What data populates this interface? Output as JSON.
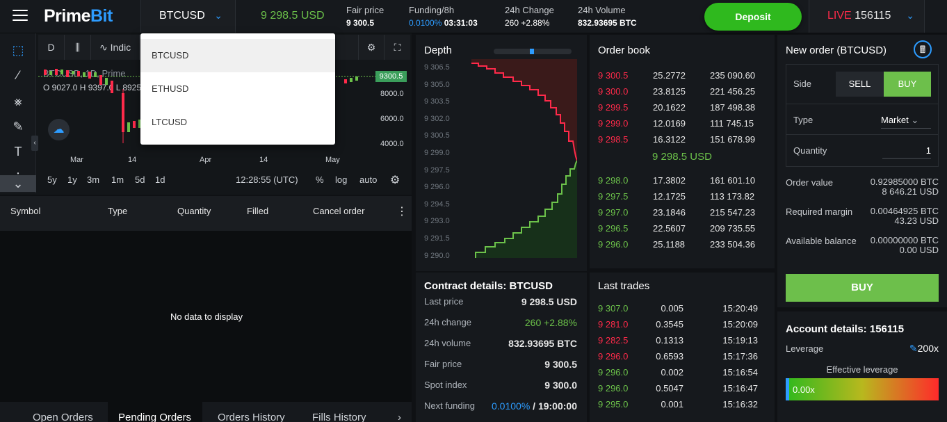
{
  "header": {
    "brand_prime": "Prime",
    "brand_bit": "Bit",
    "symbol": "BTCUSD",
    "price": "9 298.5 USD",
    "fair_price_label": "Fair price",
    "fair_price": "9 300.5",
    "funding_label": "Funding/8h",
    "funding_rate": "0.0100%",
    "funding_time": "03:31:03",
    "change_label": "24h Change",
    "change_value": "260 +2.88%",
    "volume_label": "24h Volume",
    "volume_value": "832.93695 BTC",
    "deposit_label": "Deposit",
    "account_live": "LIVE",
    "account_id": "156115"
  },
  "dropdown": {
    "items": [
      "BTCUSD",
      "ETHUSD",
      "LTCUSD"
    ]
  },
  "chart": {
    "interval_btn": "D",
    "indicators_label": "Indic",
    "legend": "BTCUSD, 1D, Prime",
    "ohlc_o": "O 9027.0",
    "ohlc_h": "H 9397.0",
    "ohlc_l": "L 8925",
    "current_price_tag": "9300.5",
    "y_ticks": [
      "8000.0",
      "6000.0",
      "4000.0"
    ],
    "x_ticks": [
      "Mar",
      "14",
      "Apr",
      "14",
      "May"
    ],
    "timeframes": [
      "5y",
      "1y",
      "3m",
      "1m",
      "5d",
      "1d"
    ],
    "clock": "12:28:55 (UTC)",
    "pct": "%",
    "log": "log",
    "auto": "auto"
  },
  "orders": {
    "columns": [
      "Symbol",
      "Type",
      "Quantity",
      "Filled",
      "Cancel order"
    ],
    "empty": "No data to display",
    "tabs": [
      "Open Orders",
      "Pending Orders",
      "Orders History",
      "Fills History"
    ]
  },
  "depth": {
    "title": "Depth",
    "y_labels": [
      "9 306.5",
      "9 305.0",
      "9 303.5",
      "9 302.0",
      "9 300.5",
      "9 299.0",
      "9 297.5",
      "9 296.0",
      "9 294.5",
      "9 293.0",
      "9 291.5",
      "9 290.0"
    ]
  },
  "orderbook": {
    "title": "Order book",
    "asks": [
      {
        "price": "9 300.5",
        "qty": "25.2772",
        "total": "235 090.60"
      },
      {
        "price": "9 300.0",
        "qty": "23.8125",
        "total": "221 456.25"
      },
      {
        "price": "9 299.5",
        "qty": "20.1622",
        "total": "187 498.38"
      },
      {
        "price": "9 299.0",
        "qty": "12.0169",
        "total": "111 745.15"
      },
      {
        "price": "9 298.5",
        "qty": "16.3122",
        "total": "151 678.99"
      }
    ],
    "mid": "9 298.5 USD",
    "bids": [
      {
        "price": "9 298.0",
        "qty": "17.3802",
        "total": "161 601.10"
      },
      {
        "price": "9 297.5",
        "qty": "12.1725",
        "total": "113 173.82"
      },
      {
        "price": "9 297.0",
        "qty": "23.1846",
        "total": "215 547.23"
      },
      {
        "price": "9 296.5",
        "qty": "22.5607",
        "total": "209 735.55"
      },
      {
        "price": "9 296.0",
        "qty": "25.1188",
        "total": "233 504.36"
      }
    ]
  },
  "contract": {
    "title": "Contract details: BTCUSD",
    "last_price_label": "Last price",
    "last_price": "9 298.5 USD",
    "change_label": "24h change",
    "change": "260 +2.88%",
    "volume_label": "24h volume",
    "volume": "832.93695 BTC",
    "fair_label": "Fair price",
    "fair": "9 300.5",
    "spot_label": "Spot index",
    "spot": "9 300.0",
    "funding_label": "Next funding",
    "funding_rate": "0.0100%",
    "funding_time": "/ 19:00:00"
  },
  "trades": {
    "title": "Last trades",
    "rows": [
      {
        "price": "9 307.0",
        "side": "buy",
        "qty": "0.005",
        "time": "15:20:49"
      },
      {
        "price": "9 281.0",
        "side": "sell",
        "qty": "0.3545",
        "time": "15:20:09"
      },
      {
        "price": "9 282.5",
        "side": "sell",
        "qty": "0.1313",
        "time": "15:19:13"
      },
      {
        "price": "9 296.0",
        "side": "sell",
        "qty": "0.6593",
        "time": "15:17:36"
      },
      {
        "price": "9 296.0",
        "side": "buy",
        "qty": "0.002",
        "time": "15:16:54"
      },
      {
        "price": "9 296.0",
        "side": "buy",
        "qty": "0.5047",
        "time": "15:16:47"
      },
      {
        "price": "9 295.0",
        "side": "buy",
        "qty": "0.001",
        "time": "15:16:32"
      }
    ]
  },
  "new_order": {
    "title": "New order (BTCUSD)",
    "side_label": "Side",
    "sell": "SELL",
    "buy": "BUY",
    "type_label": "Type",
    "type_value": "Market",
    "qty_label": "Quantity",
    "qty_value": "1",
    "order_value_label": "Order value",
    "order_value_btc": "0.92985000 BTC",
    "order_value_usd": "8 646.21 USD",
    "margin_label": "Required margin",
    "margin_btc": "0.00464925 BTC",
    "margin_usd": "43.23 USD",
    "balance_label": "Available balance",
    "balance_btc": "0.00000000 BTC",
    "balance_usd": "0.00 USD",
    "buy_button": "BUY"
  },
  "account": {
    "title": "Account details: 156115",
    "leverage_label": "Leverage",
    "leverage_value": "200x",
    "effective_label": "Effective leverage",
    "effective_value": "0.00x"
  },
  "colors": {
    "green": "#6cc24a",
    "red": "#ff2a4a",
    "blue": "#2d9cff",
    "deposit": "#2fb91e"
  }
}
